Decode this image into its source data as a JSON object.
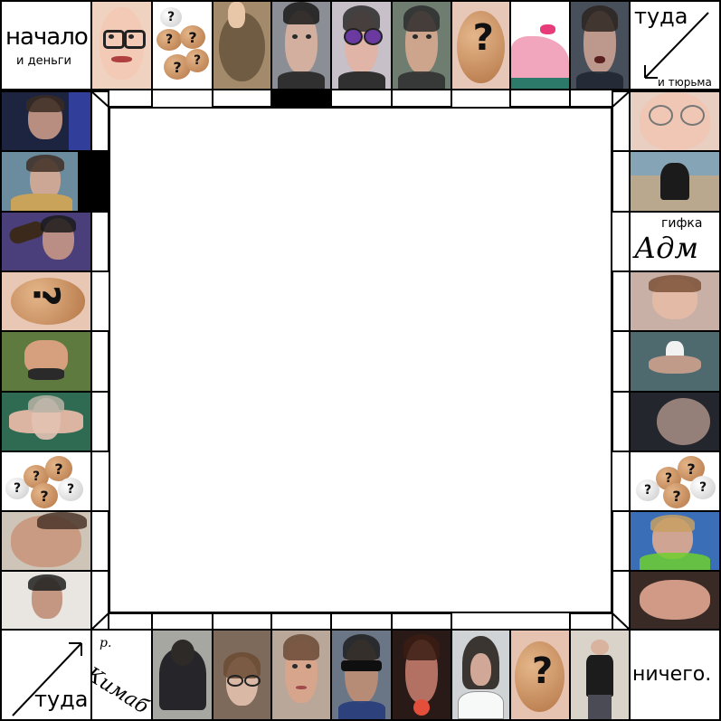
{
  "board": {
    "corner_top_left": {
      "line1": "начало",
      "line2": "и деньги"
    },
    "corner_top_right": {
      "line1": "туда",
      "line2": "и тюрьма"
    },
    "corner_bottom_left": {
      "line1": "туда"
    },
    "corner_bottom_right": {
      "line1": "ничего."
    },
    "gif_label": "гифка",
    "gif_scribble": "Адм",
    "bottom_scribble_top": "р.",
    "bottom_scribble_main": "Кимаб",
    "question_mark": "?"
  },
  "colors": {
    "border": "#000000",
    "background": "#ffffff",
    "potato": "#c98c5c"
  },
  "icons": {
    "arrow_top_right": "diagonal-arrow-down-left-icon",
    "arrow_bottom_left": "diagonal-arrow-up-right-icon"
  }
}
